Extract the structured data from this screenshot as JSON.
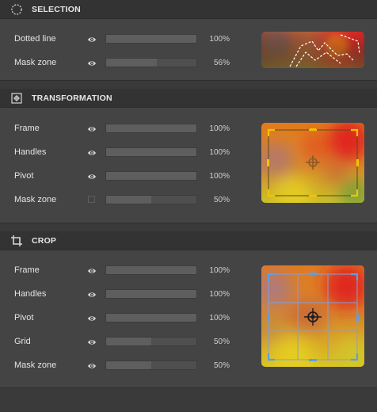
{
  "sections": [
    {
      "title": "SELECTION",
      "icon": "dotted-selection-icon",
      "rows": [
        {
          "label": "Dotted line",
          "control": "eye",
          "value": 100,
          "value_text": "100%"
        },
        {
          "label": "Mask zone",
          "control": "eye",
          "value": 56,
          "value_text": "56%"
        }
      ]
    },
    {
      "title": "TRANSFORMATION",
      "icon": "transform-pivot-icon",
      "rows": [
        {
          "label": "Frame",
          "control": "eye",
          "value": 100,
          "value_text": "100%"
        },
        {
          "label": "Handles",
          "control": "eye",
          "value": 100,
          "value_text": "100%"
        },
        {
          "label": "Pivot",
          "control": "eye",
          "value": 100,
          "value_text": "100%"
        },
        {
          "label": "Mask zone",
          "control": "checkbox",
          "value": 50,
          "value_text": "50%"
        }
      ]
    },
    {
      "title": "CROP",
      "icon": "crop-icon",
      "rows": [
        {
          "label": "Frame",
          "control": "eye",
          "value": 100,
          "value_text": "100%"
        },
        {
          "label": "Handles",
          "control": "eye",
          "value": 100,
          "value_text": "100%"
        },
        {
          "label": "Pivot",
          "control": "eye",
          "value": 100,
          "value_text": "100%"
        },
        {
          "label": "Grid",
          "control": "eye",
          "value": 50,
          "value_text": "50%"
        },
        {
          "label": "Mask zone",
          "control": "eye",
          "value": 50,
          "value_text": "50%"
        }
      ]
    }
  ],
  "colors": {
    "transform_handle": "#f2c200",
    "crop_handle": "#5aa0e6",
    "crop_grid": "#7f9fe0"
  }
}
